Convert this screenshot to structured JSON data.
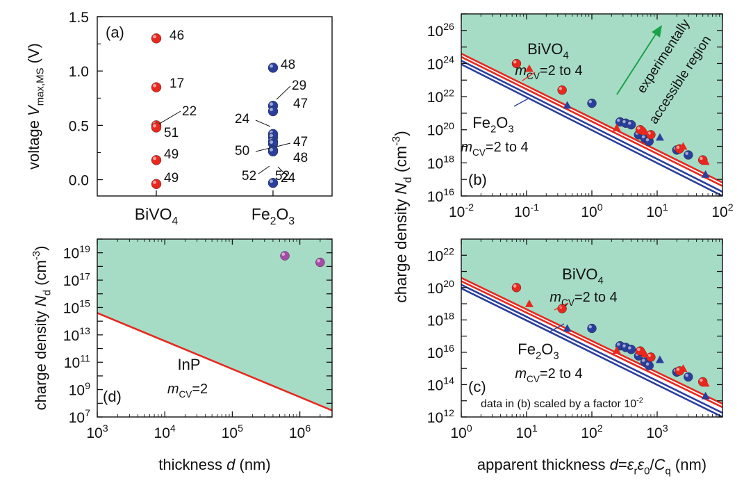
{
  "chart_data": [
    {
      "panel": "(a)",
      "type": "scatter",
      "ylabel_prefix": "voltage ",
      "ylabel_var": "V",
      "ylabel_sub": "max,MS",
      "ylabel_unit": " (V)",
      "ylim": [
        -0.15,
        1.5
      ],
      "yticks": [
        "0.0",
        "0.5",
        "1.0",
        "1.5"
      ],
      "categories": [
        {
          "base": "BiVO",
          "sub": "4"
        },
        {
          "base": "Fe",
          "sub": "2",
          "base2": "O",
          "sub2": "3"
        }
      ],
      "series": [
        {
          "color": "#e8281e",
          "points": [
            {
              "category": 0,
              "y": 1.3,
              "label": "46"
            },
            {
              "category": 0,
              "y": 0.85,
              "label": "17"
            },
            {
              "category": 0,
              "y": 0.5,
              "label": "22"
            },
            {
              "category": 0,
              "y": 0.48,
              "label": "51"
            },
            {
              "category": 0,
              "y": 0.18,
              "label": "49"
            },
            {
              "category": 0,
              "y": -0.04,
              "label": "49"
            }
          ]
        },
        {
          "color": "#2a3f9d",
          "points": [
            {
              "category": 1,
              "y": 1.03,
              "label": "48"
            },
            {
              "category": 1,
              "y": 0.68,
              "label": "29"
            },
            {
              "category": 1,
              "y": 0.63,
              "label": "47"
            },
            {
              "category": 1,
              "y": 0.42,
              "label": "24"
            },
            {
              "category": 1,
              "y": 0.39,
              "label": "47"
            },
            {
              "category": 1,
              "y": 0.35,
              "label": "50"
            },
            {
              "category": 1,
              "y": 0.33,
              "label": "48"
            },
            {
              "category": 1,
              "y": 0.27,
              "label": "52"
            },
            {
              "category": 1,
              "y": 0.26,
              "label": "52"
            },
            {
              "category": 1,
              "y": -0.03,
              "label": "24"
            }
          ]
        }
      ]
    },
    {
      "panel": "(b)",
      "type": "scatter",
      "xscale": "log",
      "yscale": "log",
      "xlim": [
        0.01,
        100
      ],
      "ylim": [
        1e+16,
        1e+27
      ],
      "xticks": [
        {
          "b": "10",
          "e": "-2"
        },
        {
          "b": "10",
          "e": "-1"
        },
        {
          "b": "10",
          "e": "0"
        },
        {
          "b": "10",
          "e": "1"
        },
        {
          "b": "10",
          "e": "2"
        }
      ],
      "yticks": [
        {
          "b": "10",
          "e": "16"
        },
        {
          "b": "10",
          "e": "18"
        },
        {
          "b": "10",
          "e": "20"
        },
        {
          "b": "10",
          "e": "22"
        },
        {
          "b": "10",
          "e": "24"
        },
        {
          "b": "10",
          "e": "26"
        }
      ],
      "shaded_region": "above lines",
      "annotation_region": [
        "experimentally",
        "accessible region"
      ],
      "series": [
        {
          "material_base": "BiVO",
          "material_sub": "4",
          "m_label": "=2 to 4",
          "color": "#e8281e",
          "lines": [
            {
              "x": [
                0.01,
                100
              ],
              "y": [
                4e+24,
                6.5e+16
              ]
            },
            {
              "x": [
                0.01,
                100
              ],
              "y": [
                2.5e+24,
                4e+16
              ]
            }
          ],
          "points": [
            {
              "x": 0.07,
              "y": 1e+24
            },
            {
              "x": 0.35,
              "y": 2.5e+22
            },
            {
              "x": 5.5,
              "y": 1e+20
            },
            {
              "x": 8,
              "y": 5e+19
            },
            {
              "x": 22,
              "y": 7e+18
            },
            {
              "x": 50,
              "y": 1.5e+18
            }
          ],
          "triangles": [
            {
              "x": 0.11,
              "y": 5e+23
            },
            {
              "x": 2.4,
              "y": 1.3e+20
            },
            {
              "x": 6.5,
              "y": 8e+19
            },
            {
              "x": 25,
              "y": 1e+19
            },
            {
              "x": 55,
              "y": 1.2e+18
            }
          ]
        },
        {
          "material_base": "Fe",
          "material_sub": "2",
          "material_base2": "O",
          "material_sub2": "3",
          "m_label": "=2 to 4",
          "color": "#2a3f9d",
          "lines": [
            {
              "x": [
                0.01,
                100
              ],
              "y": [
                1.5e+24,
                1.8e+16
              ]
            },
            {
              "x": [
                0.01,
                100
              ],
              "y": [
                9e+23,
                1e+16
              ]
            }
          ],
          "points": [
            {
              "x": 1.0,
              "y": 4e+21
            },
            {
              "x": 2.7,
              "y": 3e+20
            },
            {
              "x": 3.3,
              "y": 2.5e+20
            },
            {
              "x": 4.0,
              "y": 2e+20
            },
            {
              "x": 5.2,
              "y": 5e+19
            },
            {
              "x": 6.5,
              "y": 3e+19
            },
            {
              "x": 7.5,
              "y": 2e+19
            },
            {
              "x": 20,
              "y": 6e+18
            },
            {
              "x": 30,
              "y": 3e+18
            }
          ],
          "triangles": [
            {
              "x": 0.42,
              "y": 3e+21
            },
            {
              "x": 11,
              "y": 3.5e+19
            },
            {
              "x": 55,
              "y": 2e+17
            }
          ]
        }
      ]
    },
    {
      "panel": "(c)",
      "type": "scatter",
      "xscale": "log",
      "yscale": "log",
      "xlim": [
        1,
        10000
      ],
      "ylim": [
        1000000000000.0,
        1e+23
      ],
      "xticks": [
        {
          "b": "10",
          "e": "0"
        },
        {
          "b": "10",
          "e": "1"
        },
        {
          "b": "10",
          "e": "2"
        },
        {
          "b": "10",
          "e": "3"
        }
      ],
      "yticks": [
        {
          "b": "10",
          "e": "12"
        },
        {
          "b": "10",
          "e": "14"
        },
        {
          "b": "10",
          "e": "16"
        },
        {
          "b": "10",
          "e": "18"
        },
        {
          "b": "10",
          "e": "20"
        },
        {
          "b": "10",
          "e": "22"
        }
      ],
      "note": "data in (b) scaled by a factor 10",
      "note_exp": "-2",
      "shaded_region": "above lines",
      "series": [
        {
          "material_base": "BiVO",
          "material_sub": "4",
          "m_label": "=2 to 4",
          "color": "#e8281e",
          "lines": [
            {
              "x": [
                1,
                10000
              ],
              "y": [
                4e+20,
                6500000000000.0
              ]
            },
            {
              "x": [
                1,
                10000
              ],
              "y": [
                2.5e+20,
                4000000000000.0
              ]
            }
          ],
          "points": [
            {
              "x": 7,
              "y": 1e+20
            },
            {
              "x": 35,
              "y": 5e+18
            },
            {
              "x": 550,
              "y": 1.2e+16
            },
            {
              "x": 800,
              "y": 5000000000000000.0
            },
            {
              "x": 2200,
              "y": 700000000000000.0
            },
            {
              "x": 5000,
              "y": 150000000000000.0
            }
          ],
          "triangles": [
            {
              "x": 11,
              "y": 1e+19
            },
            {
              "x": 240,
              "y": 1.3e+16
            },
            {
              "x": 650,
              "y": 8000000000000000.0
            },
            {
              "x": 2500,
              "y": 1000000000000000.0
            },
            {
              "x": 5500,
              "y": 120000000000000.0
            }
          ]
        },
        {
          "material_base": "Fe",
          "material_sub": "2",
          "material_base2": "O",
          "material_sub2": "3",
          "m_label": "=2 to 4",
          "color": "#2a3f9d",
          "lines": [
            {
              "x": [
                1,
                10000
              ],
              "y": [
                1.5e+20,
                1800000000000.0
              ]
            },
            {
              "x": [
                1,
                10000
              ],
              "y": [
                9e+19,
                1000000000000.0
              ]
            }
          ],
          "points": [
            {
              "x": 100,
              "y": 3e+17
            },
            {
              "x": 270,
              "y": 2.5e+16
            },
            {
              "x": 330,
              "y": 2e+16
            },
            {
              "x": 400,
              "y": 1.5e+16
            },
            {
              "x": 520,
              "y": 6000000000000000.0
            },
            {
              "x": 650,
              "y": 2500000000000000.0
            },
            {
              "x": 750,
              "y": 1500000000000000.0
            },
            {
              "x": 2000,
              "y": 600000000000000.0
            },
            {
              "x": 3000,
              "y": 300000000000000.0
            }
          ],
          "triangles": [
            {
              "x": 42,
              "y": 3e+17
            },
            {
              "x": 1100,
              "y": 3500000000000000.0
            },
            {
              "x": 5500,
              "y": 20000000000000.0
            }
          ]
        }
      ]
    },
    {
      "panel": "(d)",
      "type": "line",
      "xscale": "log",
      "yscale": "log",
      "xlim": [
        1000,
        3000000
      ],
      "ylim": [
        10000000.0,
        1e+20
      ],
      "xticks": [
        {
          "b": "10",
          "e": "3"
        },
        {
          "b": "10",
          "e": "4"
        },
        {
          "b": "10",
          "e": "5"
        },
        {
          "b": "10",
          "e": "6"
        }
      ],
      "yticks": [
        {
          "b": "10",
          "e": "7"
        },
        {
          "b": "10",
          "e": "9"
        },
        {
          "b": "10",
          "e": "11"
        },
        {
          "b": "10",
          "e": "13"
        },
        {
          "b": "10",
          "e": "15"
        },
        {
          "b": "10",
          "e": "17"
        },
        {
          "b": "10",
          "e": "19"
        }
      ],
      "xlabel_prefix": "thickness ",
      "xlabel_var": "d",
      "xlabel_unit": " (nm)",
      "shaded_region": "above line",
      "series": [
        {
          "name": "InP",
          "m_label": "=2",
          "color": "#e8281e",
          "line": {
            "x": [
              1000,
              3000000
            ],
            "y": [
              400000000000000.0,
              30000000.0
            ]
          },
          "points": [
            {
              "x": 600000,
              "y": 6e+18
            },
            {
              "x": 2000000,
              "y": 2e+18
            }
          ],
          "point_color": "#a64ca6"
        }
      ]
    }
  ],
  "labels": {
    "ylabel_nd": "charge density ",
    "nd_var": "N",
    "nd_sub": "d",
    "nd_unit_pre": " (cm",
    "nd_unit_exp": "-3",
    "nd_unit_post": ")",
    "m_var": "m",
    "m_sub": "CV",
    "apparent_prefix": "apparent thickness ",
    "apparent_d": "d",
    "apparent_eq": "=",
    "apparent_er": "ε",
    "apparent_er_sub": "r",
    "apparent_e0": "ε",
    "apparent_e0_sub": "0",
    "apparent_slash": "/",
    "apparent_C": "C",
    "apparent_C_sub": "q",
    "apparent_unit": " (nm)"
  },
  "colors": {
    "shade": "#a6dcc6",
    "red": "#e8281e",
    "blue": "#2a3f9d",
    "green": "#1aa24a",
    "purple": "#a64ca6"
  }
}
